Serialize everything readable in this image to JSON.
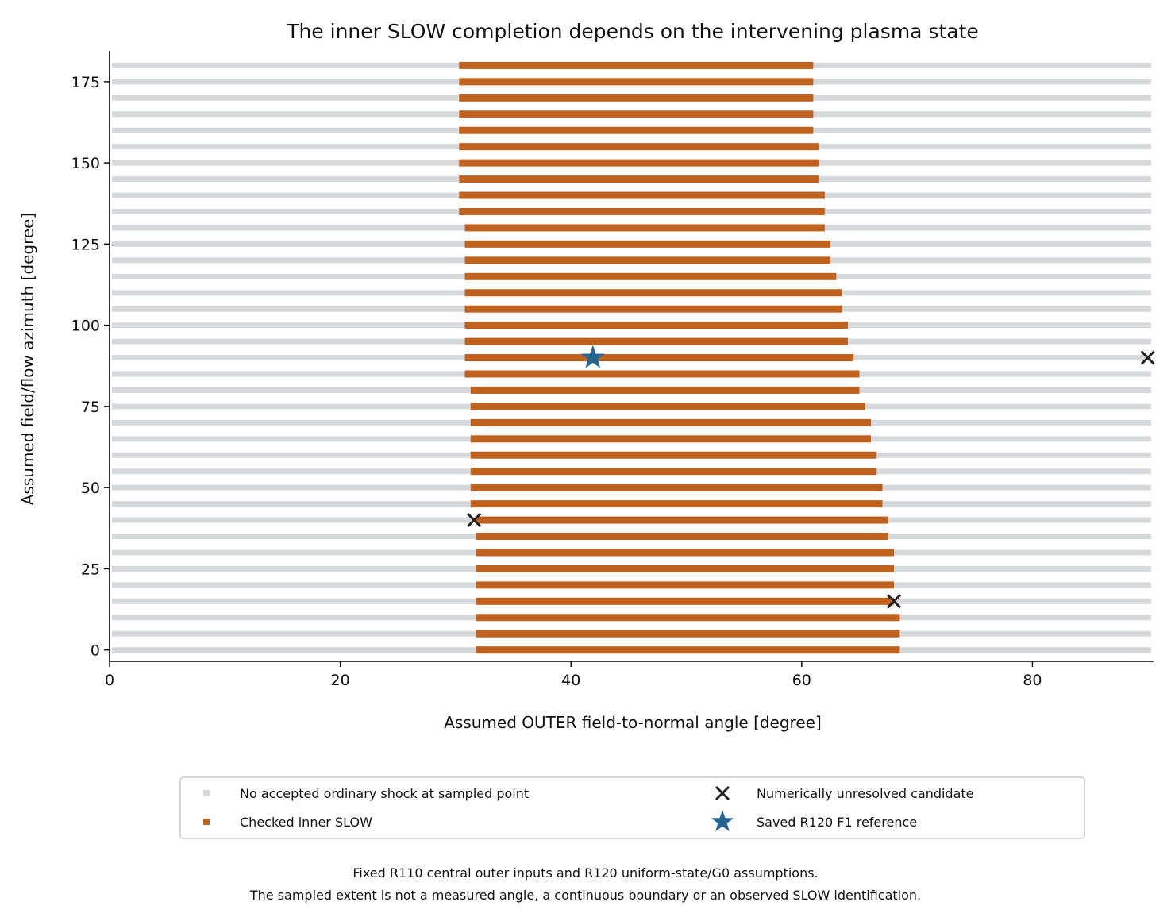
{
  "chart_data": {
    "type": "bar",
    "orientation": "horizontal-range",
    "title": "The inner SLOW completion depends on the intervening plasma state",
    "xlabel": "Assumed OUTER field-to-normal angle [degree]",
    "ylabel": "Assumed field/flow azimuth [degree]",
    "xlim": [
      0,
      90.5
    ],
    "ylim": [
      -3.5,
      184.5
    ],
    "xticks": [
      0,
      20,
      40,
      60,
      80
    ],
    "yticks": [
      0,
      25,
      50,
      75,
      100,
      125,
      150,
      175
    ],
    "grid": false,
    "azimuths": [
      0,
      5,
      10,
      15,
      20,
      25,
      30,
      35,
      40,
      45,
      50,
      55,
      60,
      65,
      70,
      75,
      80,
      85,
      90,
      95,
      100,
      105,
      110,
      115,
      120,
      125,
      130,
      135,
      140,
      145,
      150,
      155,
      160,
      165,
      170,
      175,
      180
    ],
    "no_accept_range": [
      0.2,
      90.3
    ],
    "series": [
      {
        "name": "No accepted ordinary shock at sampled point",
        "color": "#d6d9dc"
      },
      {
        "name": "Checked inner SLOW",
        "color": "#c0621f",
        "ranges": [
          [
            31.8,
            68.5
          ],
          [
            31.8,
            68.5
          ],
          [
            31.8,
            68.5
          ],
          [
            31.8,
            68.0
          ],
          [
            31.8,
            68.0
          ],
          [
            31.8,
            68.0
          ],
          [
            31.8,
            68.0
          ],
          [
            31.8,
            67.5
          ],
          [
            31.8,
            67.5
          ],
          [
            31.3,
            67.0
          ],
          [
            31.3,
            67.0
          ],
          [
            31.3,
            66.5
          ],
          [
            31.3,
            66.5
          ],
          [
            31.3,
            66.0
          ],
          [
            31.3,
            66.0
          ],
          [
            31.3,
            65.5
          ],
          [
            31.3,
            65.0
          ],
          [
            30.8,
            65.0
          ],
          [
            30.8,
            64.5
          ],
          [
            30.8,
            64.0
          ],
          [
            30.8,
            64.0
          ],
          [
            30.8,
            63.5
          ],
          [
            30.8,
            63.5
          ],
          [
            30.8,
            63.0
          ],
          [
            30.8,
            62.5
          ],
          [
            30.8,
            62.5
          ],
          [
            30.8,
            62.0
          ],
          [
            30.3,
            62.0
          ],
          [
            30.3,
            62.0
          ],
          [
            30.3,
            61.5
          ],
          [
            30.3,
            61.5
          ],
          [
            30.3,
            61.5
          ],
          [
            30.3,
            61.0
          ],
          [
            30.3,
            61.0
          ],
          [
            30.3,
            61.0
          ],
          [
            30.3,
            61.0
          ],
          [
            30.3,
            61.0
          ]
        ]
      },
      {
        "name": "Numerically unresolved candidate",
        "color": "#222222",
        "points": [
          [
            31.6,
            40
          ],
          [
            68.0,
            15
          ],
          [
            90.0,
            90
          ]
        ]
      },
      {
        "name": "Saved R120 F1 reference",
        "color": "#26658f",
        "points": [
          [
            41.9,
            90
          ]
        ]
      }
    ],
    "legend_position": "bottom-center"
  },
  "footnote": {
    "line1": "Fixed R110 central outer inputs and R120 uniform-state/G0 assumptions.",
    "line2": "The sampled extent is not a measured angle, a continuous boundary or an observed SLOW identification."
  }
}
